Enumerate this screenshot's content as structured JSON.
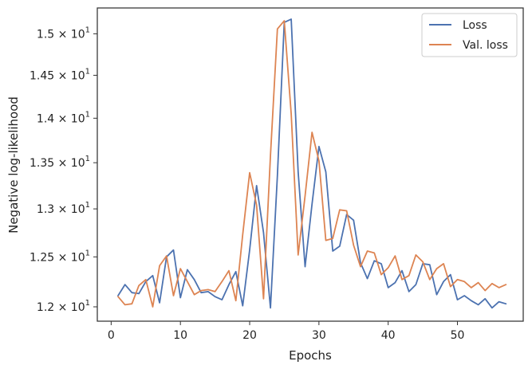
{
  "chart_data": {
    "type": "line",
    "title": "",
    "xlabel": "Epochs",
    "ylabel": "Negative log-likelihood",
    "xlim": [
      -2,
      59.5
    ],
    "ylim": [
      11.86,
      15.32
    ],
    "yscale": "log",
    "grid": false,
    "legend_position": "top-right",
    "x_ticks": [
      0,
      10,
      20,
      30,
      40,
      50
    ],
    "x_tick_labels": [
      "0",
      "10",
      "20",
      "30",
      "40",
      "50"
    ],
    "y_ticks": [
      12.0,
      12.5,
      13.0,
      13.5,
      14.0,
      14.5,
      15.0
    ],
    "y_tick_labels": [
      {
        "mantissa": "1.2 × 10",
        "exponent": "1"
      },
      {
        "mantissa": "1.25 × 10",
        "exponent": "1"
      },
      {
        "mantissa": "1.3 × 10",
        "exponent": "1"
      },
      {
        "mantissa": "1.35 × 10",
        "exponent": "1"
      },
      {
        "mantissa": "1.4 × 10",
        "exponent": "1"
      },
      {
        "mantissa": "1.45 × 10",
        "exponent": "1"
      },
      {
        "mantissa": "1.5 × 10",
        "exponent": "1"
      }
    ],
    "x": [
      1,
      2,
      3,
      4,
      5,
      6,
      7,
      8,
      9,
      10,
      11,
      12,
      13,
      14,
      15,
      16,
      17,
      18,
      19,
      20,
      21,
      22,
      23,
      24,
      25,
      26,
      27,
      28,
      29,
      30,
      31,
      32,
      33,
      34,
      35,
      36,
      37,
      38,
      39,
      40,
      41,
      42,
      43,
      44,
      45,
      46,
      47,
      48,
      49,
      50,
      51,
      52,
      53,
      54,
      55,
      56,
      57
    ],
    "series": [
      {
        "name": "Loss",
        "color": "#4c72b0",
        "values": [
          12.11,
          12.22,
          12.14,
          12.13,
          12.25,
          12.31,
          12.04,
          12.5,
          12.57,
          12.09,
          12.37,
          12.27,
          12.14,
          12.15,
          12.1,
          12.07,
          12.22,
          12.35,
          12.01,
          12.57,
          13.25,
          12.75,
          11.99,
          13.36,
          15.14,
          15.18,
          13.4,
          12.4,
          13.05,
          13.68,
          13.4,
          12.56,
          12.61,
          12.94,
          12.88,
          12.44,
          12.28,
          12.46,
          12.43,
          12.19,
          12.24,
          12.36,
          12.15,
          12.22,
          12.43,
          12.42,
          12.12,
          12.25,
          12.32,
          12.07,
          12.11,
          12.06,
          12.02,
          12.08,
          11.99,
          12.05,
          12.03
        ]
      },
      {
        "name": "Val. loss",
        "color": "#dd8452",
        "values": [
          12.1,
          12.02,
          12.03,
          12.21,
          12.27,
          12.0,
          12.41,
          12.51,
          12.11,
          12.38,
          12.25,
          12.12,
          12.16,
          12.17,
          12.15,
          12.25,
          12.36,
          12.06,
          12.73,
          13.39,
          13.04,
          12.08,
          13.58,
          15.06,
          15.16,
          14.05,
          12.52,
          13.14,
          13.84,
          13.52,
          12.67,
          12.69,
          12.99,
          12.98,
          12.62,
          12.4,
          12.56,
          12.54,
          12.32,
          12.39,
          12.51,
          12.27,
          12.31,
          12.52,
          12.45,
          12.27,
          12.38,
          12.43,
          12.2,
          12.27,
          12.25,
          12.19,
          12.24,
          12.16,
          12.23,
          12.19,
          12.22
        ]
      }
    ]
  }
}
